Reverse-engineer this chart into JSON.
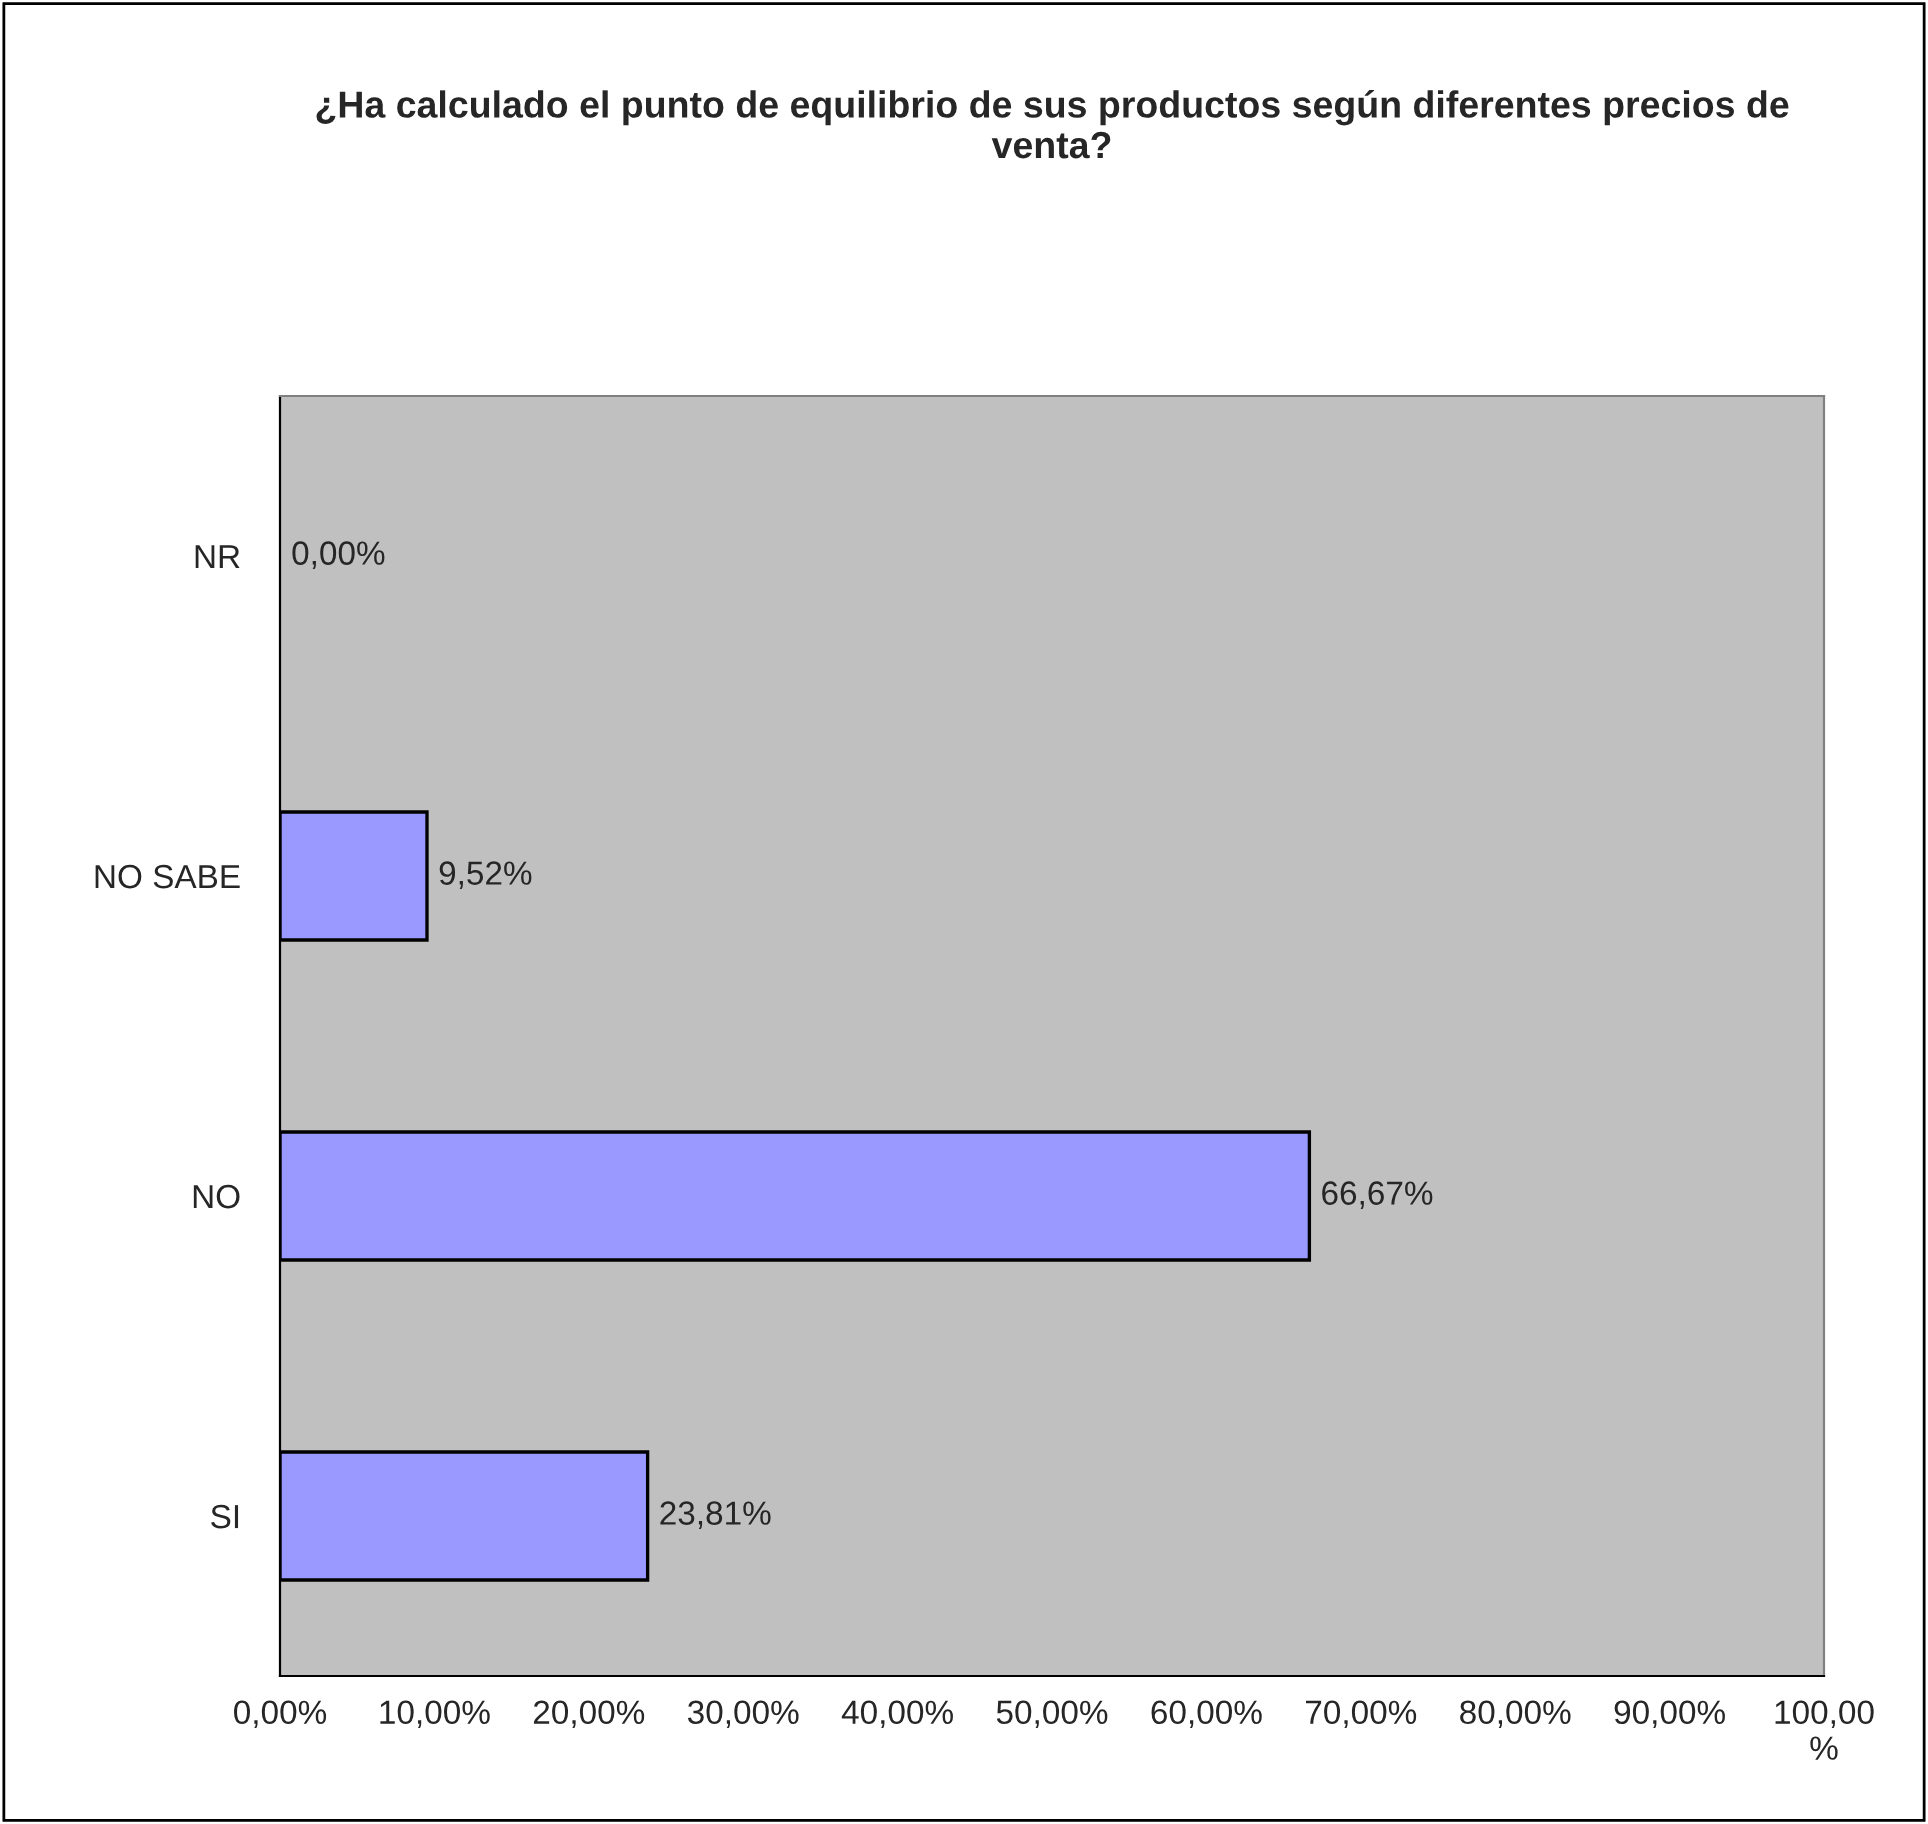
{
  "chart_data": {
    "type": "bar",
    "orientation": "horizontal",
    "title": "¿Ha calculado el punto de equilibrio de sus productos según diferentes precios de venta?",
    "categories": [
      "NR",
      "NO SABE",
      "NO",
      "SI"
    ],
    "values": [
      0,
      9.52,
      66.67,
      23.81
    ],
    "value_labels": [
      "0,00%",
      "9,52%",
      "66,67%",
      "23,81%"
    ],
    "color": "#9999ff",
    "xlim": [
      0,
      100
    ],
    "xticks": [
      {
        "value": 0,
        "label": "0,00%"
      },
      {
        "value": 10,
        "label": "10,00%"
      },
      {
        "value": 20,
        "label": "20,00%"
      },
      {
        "value": 30,
        "label": "30,00%"
      },
      {
        "value": 40,
        "label": "40,00%"
      },
      {
        "value": 50,
        "label": "50,00%"
      },
      {
        "value": 60,
        "label": "60,00%"
      },
      {
        "value": 70,
        "label": "70,00%"
      },
      {
        "value": 80,
        "label": "80,00%"
      },
      {
        "value": 90,
        "label": "90,00%"
      },
      {
        "value": 100,
        "label": "100,00\n%"
      }
    ],
    "grid": false,
    "legend": false
  }
}
